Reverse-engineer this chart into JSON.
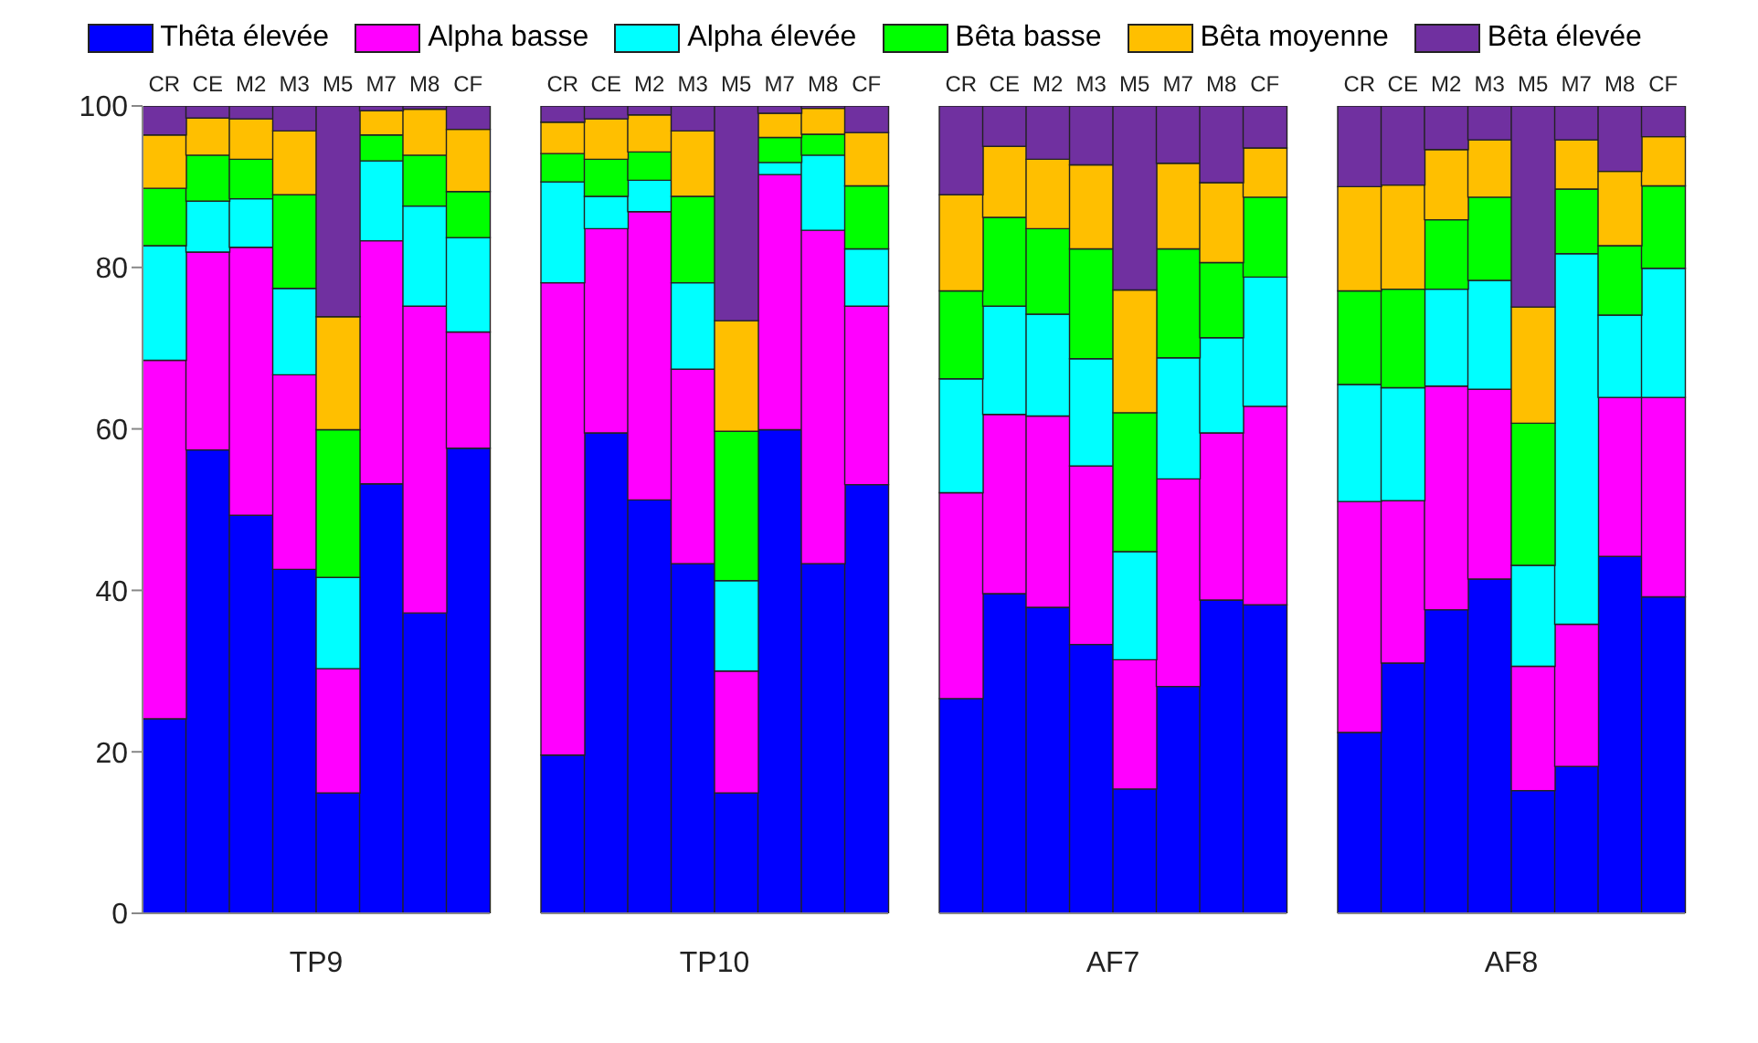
{
  "chart_data": [
    {
      "type": "bar",
      "stacked": true,
      "xlabel": "TP9",
      "categories": [
        "CR",
        "CE",
        "M2",
        "M3",
        "M5",
        "M7",
        "M8",
        "CF"
      ],
      "ylim": [
        0,
        100
      ],
      "yticks": [
        0,
        20,
        40,
        60,
        80,
        100
      ],
      "legend": "top",
      "series": [
        {
          "name": "Thêta élevée",
          "color": "#0000ff",
          "values": [
            24.1,
            57.4,
            49.3,
            42.6,
            14.9,
            53.2,
            37.2,
            57.6
          ]
        },
        {
          "name": "Alpha basse",
          "color": "#ff00ff",
          "values": [
            44.4,
            24.5,
            33.2,
            24.1,
            15.4,
            30.1,
            38.0,
            14.4
          ]
        },
        {
          "name": "Alpha élevée",
          "color": "#00ffff",
          "values": [
            14.2,
            6.3,
            6.0,
            10.7,
            11.3,
            9.9,
            12.4,
            11.7
          ]
        },
        {
          "name": "Bêta basse",
          "color": "#00ff00",
          "values": [
            7.1,
            5.7,
            4.9,
            11.6,
            18.3,
            3.2,
            6.3,
            5.7
          ]
        },
        {
          "name": "Bêta moyenne",
          "color": "#ffbf00",
          "values": [
            6.6,
            4.6,
            5.0,
            7.9,
            14.0,
            3.0,
            5.7,
            7.7
          ]
        },
        {
          "name": "Bêta élevée",
          "color": "#7030a0",
          "values": [
            3.6,
            1.5,
            1.6,
            3.1,
            26.1,
            0.6,
            0.4,
            2.9
          ]
        }
      ]
    },
    {
      "type": "bar",
      "stacked": true,
      "xlabel": "TP10",
      "categories": [
        "CR",
        "CE",
        "M2",
        "M3",
        "M5",
        "M7",
        "M8",
        "CF"
      ],
      "ylim": [
        0,
        100
      ],
      "tick_labels": "x",
      "series": [
        {
          "color": "#0000ff",
          "values": [
            19.6,
            59.5,
            51.2,
            43.3,
            14.9,
            59.9,
            43.3,
            53.1
          ]
        },
        {
          "color": "#ff00ff",
          "values": [
            58.5,
            25.3,
            35.7,
            24.1,
            15.1,
            31.6,
            41.3,
            22.1
          ]
        },
        {
          "color": "#00ffff",
          "values": [
            12.5,
            4.0,
            3.9,
            10.7,
            11.2,
            1.5,
            9.3,
            7.1
          ]
        },
        {
          "color": "#00ff00",
          "values": [
            3.5,
            4.6,
            3.5,
            10.7,
            18.5,
            3.1,
            2.6,
            7.8
          ]
        },
        {
          "color": "#ffbf00",
          "values": [
            3.9,
            5.0,
            4.6,
            8.1,
            13.7,
            3.0,
            3.2,
            6.6
          ]
        },
        {
          "color": "#7030a0",
          "values": [
            2.0,
            1.6,
            1.1,
            3.1,
            26.6,
            0.9,
            0.3,
            3.3
          ]
        }
      ]
    },
    {
      "type": "bar",
      "stacked": true,
      "xlabel": "AF7",
      "categories": [
        "CR",
        "CE",
        "M2",
        "M3",
        "M5",
        "M7",
        "M8",
        "CF"
      ],
      "ylim": [
        0,
        100
      ],
      "tick_labels": "x",
      "series": [
        {
          "color": "#0000ff",
          "values": [
            26.6,
            39.6,
            37.9,
            33.3,
            15.4,
            28.1,
            38.8,
            38.2
          ]
        },
        {
          "color": "#ff00ff",
          "values": [
            25.5,
            22.2,
            23.7,
            22.1,
            16.0,
            25.7,
            20.7,
            24.6
          ]
        },
        {
          "color": "#00ffff",
          "values": [
            14.1,
            13.4,
            12.6,
            13.3,
            13.4,
            15.0,
            11.8,
            16.0
          ]
        },
        {
          "color": "#00ff00",
          "values": [
            10.9,
            11.0,
            10.6,
            13.6,
            17.2,
            13.5,
            9.3,
            9.9
          ]
        },
        {
          "color": "#ffbf00",
          "values": [
            11.9,
            8.8,
            8.6,
            10.4,
            15.2,
            10.6,
            9.9,
            6.1
          ]
        },
        {
          "color": "#7030a0",
          "values": [
            11.0,
            5.0,
            6.6,
            7.3,
            22.8,
            7.1,
            9.5,
            5.2
          ]
        }
      ]
    },
    {
      "type": "bar",
      "stacked": true,
      "xlabel": "AF8",
      "categories": [
        "CR",
        "CE",
        "M2",
        "M3",
        "M5",
        "M7",
        "M8",
        "CF"
      ],
      "ylim": [
        0,
        100
      ],
      "tick_labels": "x",
      "series": [
        {
          "color": "#0000ff",
          "values": [
            22.4,
            31.0,
            37.6,
            41.4,
            15.2,
            18.2,
            44.2,
            39.2
          ]
        },
        {
          "color": "#ff00ff",
          "values": [
            28.6,
            20.1,
            27.7,
            23.5,
            15.4,
            17.6,
            19.7,
            24.7
          ]
        },
        {
          "color": "#00ffff",
          "values": [
            14.5,
            14.0,
            12.0,
            13.5,
            12.5,
            45.9,
            10.2,
            16.0
          ]
        },
        {
          "color": "#00ff00",
          "values": [
            11.6,
            12.2,
            8.6,
            10.3,
            17.6,
            8.0,
            8.6,
            10.2
          ]
        },
        {
          "color": "#ffbf00",
          "values": [
            12.9,
            12.9,
            8.7,
            7.1,
            14.4,
            6.1,
            9.2,
            6.1
          ]
        },
        {
          "color": "#7030a0",
          "values": [
            10.0,
            9.8,
            5.4,
            4.2,
            24.9,
            4.2,
            8.1,
            3.8
          ]
        }
      ]
    }
  ]
}
